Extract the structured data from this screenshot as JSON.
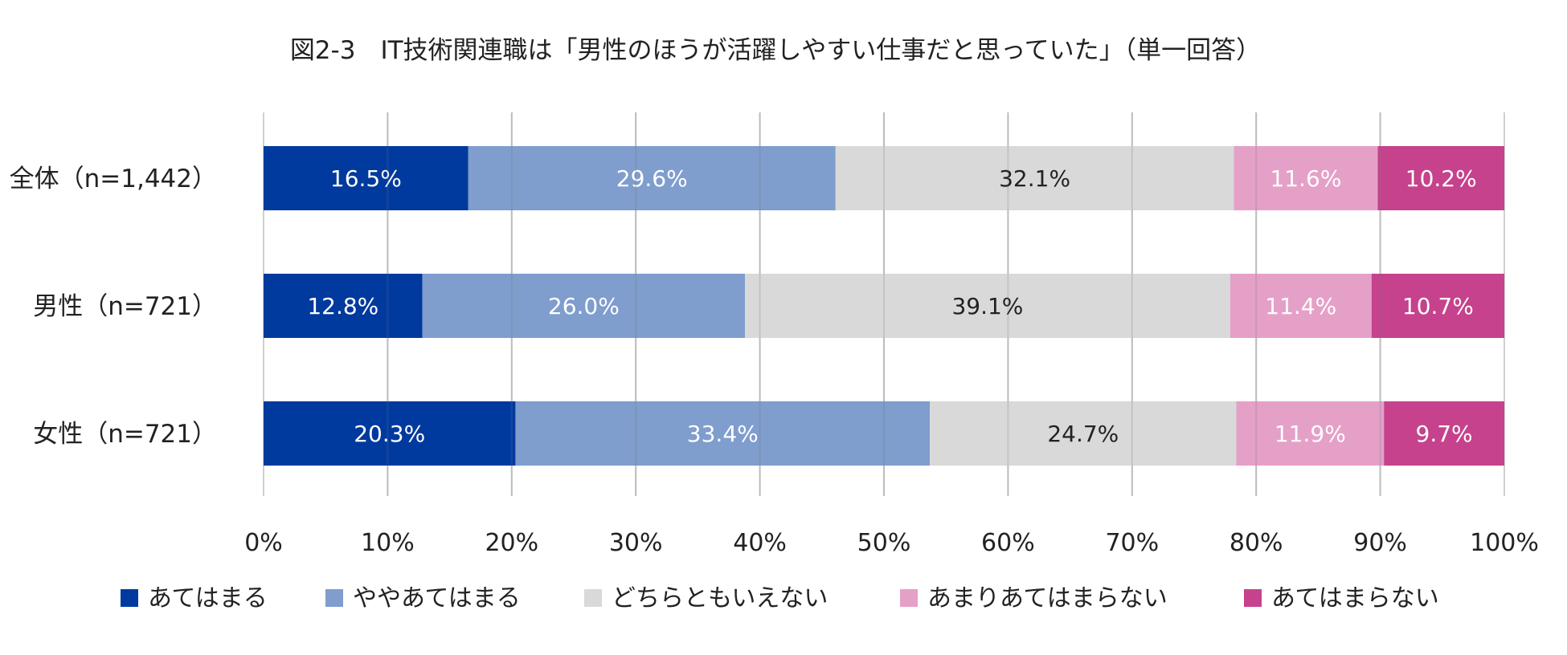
{
  "chart_data": {
    "type": "bar",
    "orientation": "horizontal",
    "stacked": true,
    "percent_stacked": true,
    "title": "図2-3　IT技術関連職は「男性のほうが活躍しやすい仕事だと思っていた」（単一回答）",
    "categories": [
      "全体（n=1,442）",
      "男性（n=721）",
      "女性（n=721）"
    ],
    "series": [
      {
        "name": "あてはまる",
        "color": "#003A9E",
        "label_color": "#FFFFFF",
        "values": [
          16.5,
          12.8,
          20.3
        ],
        "labels": [
          "16.5%",
          "12.8%",
          "20.3%"
        ]
      },
      {
        "name": "ややあてはまる",
        "color": "#7F9DCD",
        "label_color": "#FFFFFF",
        "values": [
          29.6,
          26.0,
          33.4
        ],
        "labels": [
          "29.6%",
          "26.0%",
          "33.4%"
        ]
      },
      {
        "name": "どちらともいえない",
        "color": "#D9D9D9",
        "label_color": "#222222",
        "values": [
          32.1,
          39.1,
          24.7
        ],
        "labels": [
          "32.1%",
          "39.1%",
          "24.7%"
        ]
      },
      {
        "name": "あまりあてはまらない",
        "color": "#E5A0C8",
        "label_color": "#FFFFFF",
        "values": [
          11.6,
          11.4,
          11.9
        ],
        "labels": [
          "11.6%",
          "11.4%",
          "11.9%"
        ]
      },
      {
        "name": "あてはまらない",
        "color": "#C6428C",
        "label_color": "#FFFFFF",
        "values": [
          10.2,
          10.7,
          9.7
        ],
        "labels": [
          "10.2%",
          "10.7%",
          "9.7%"
        ]
      }
    ],
    "xlim": [
      0,
      100
    ],
    "xticks": [
      0,
      10,
      20,
      30,
      40,
      50,
      60,
      70,
      80,
      90,
      100
    ],
    "xtick_labels": [
      "0%",
      "10%",
      "20%",
      "30%",
      "40%",
      "50%",
      "60%",
      "70%",
      "80%",
      "90%",
      "100%"
    ],
    "grid": true,
    "legend_position": "bottom"
  }
}
